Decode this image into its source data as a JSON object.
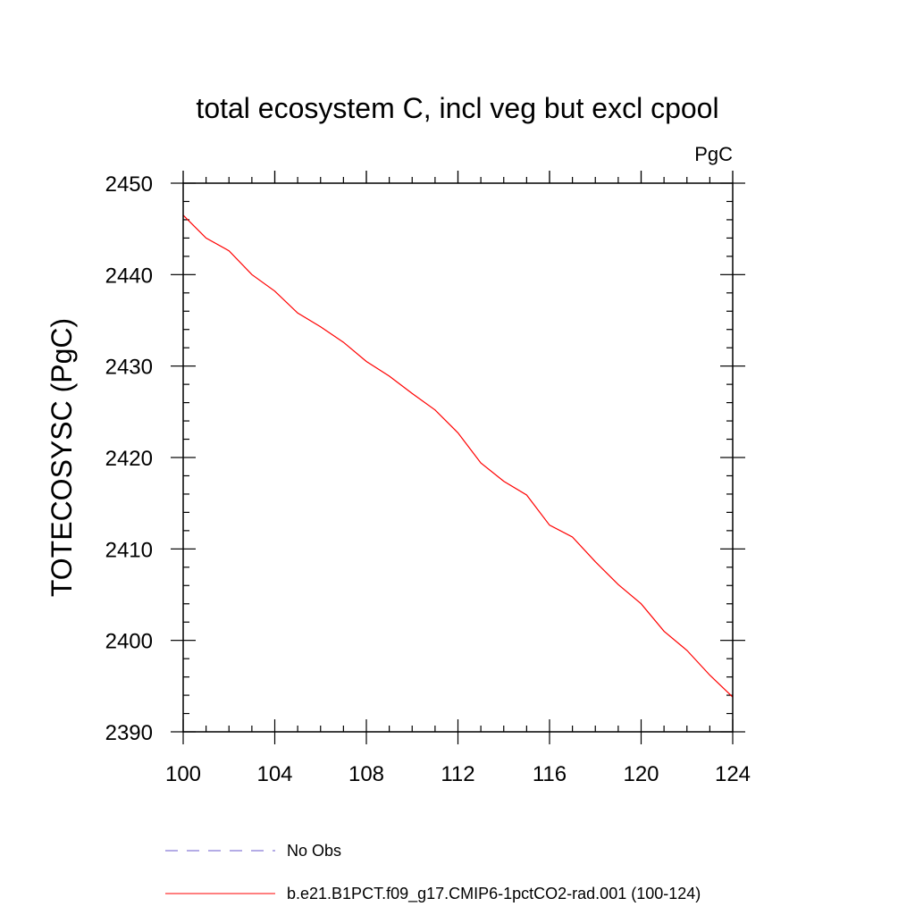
{
  "chart_data": {
    "type": "line",
    "title": "total ecosystem C, incl veg but excl cpool",
    "units": "PgC",
    "xlabel": "",
    "ylabel": "TOTECOSYSC  (PgC)",
    "xlim": [
      100,
      124
    ],
    "ylim": [
      2390,
      2450
    ],
    "x_ticks": [
      100,
      104,
      108,
      112,
      116,
      120,
      124
    ],
    "y_ticks": [
      2390,
      2400,
      2410,
      2420,
      2430,
      2440,
      2450
    ],
    "grid": false,
    "legend_position": "bottom",
    "series": [
      {
        "name": "No Obs",
        "color": "#6a5acd",
        "style": "dashed",
        "x": [],
        "y": []
      },
      {
        "name": "b.e21.B1PCT.f09_g17.CMIP6-1pctCO2-rad.001 (100-124)",
        "color": "#ff0000",
        "style": "solid",
        "x": [
          100,
          101,
          102,
          103,
          104,
          105,
          106,
          107,
          108,
          109,
          110,
          111,
          112,
          113,
          114,
          115,
          116,
          117,
          118,
          119,
          120,
          121,
          122,
          123,
          124
        ],
        "y": [
          2446.5,
          2444.0,
          2442.6,
          2440.0,
          2438.2,
          2435.8,
          2434.3,
          2432.6,
          2430.5,
          2428.9,
          2427.0,
          2425.2,
          2422.7,
          2419.4,
          2417.4,
          2415.9,
          2412.6,
          2411.3,
          2408.6,
          2406.1,
          2404.0,
          2401.0,
          2398.9,
          2396.2,
          2393.8
        ]
      }
    ]
  }
}
